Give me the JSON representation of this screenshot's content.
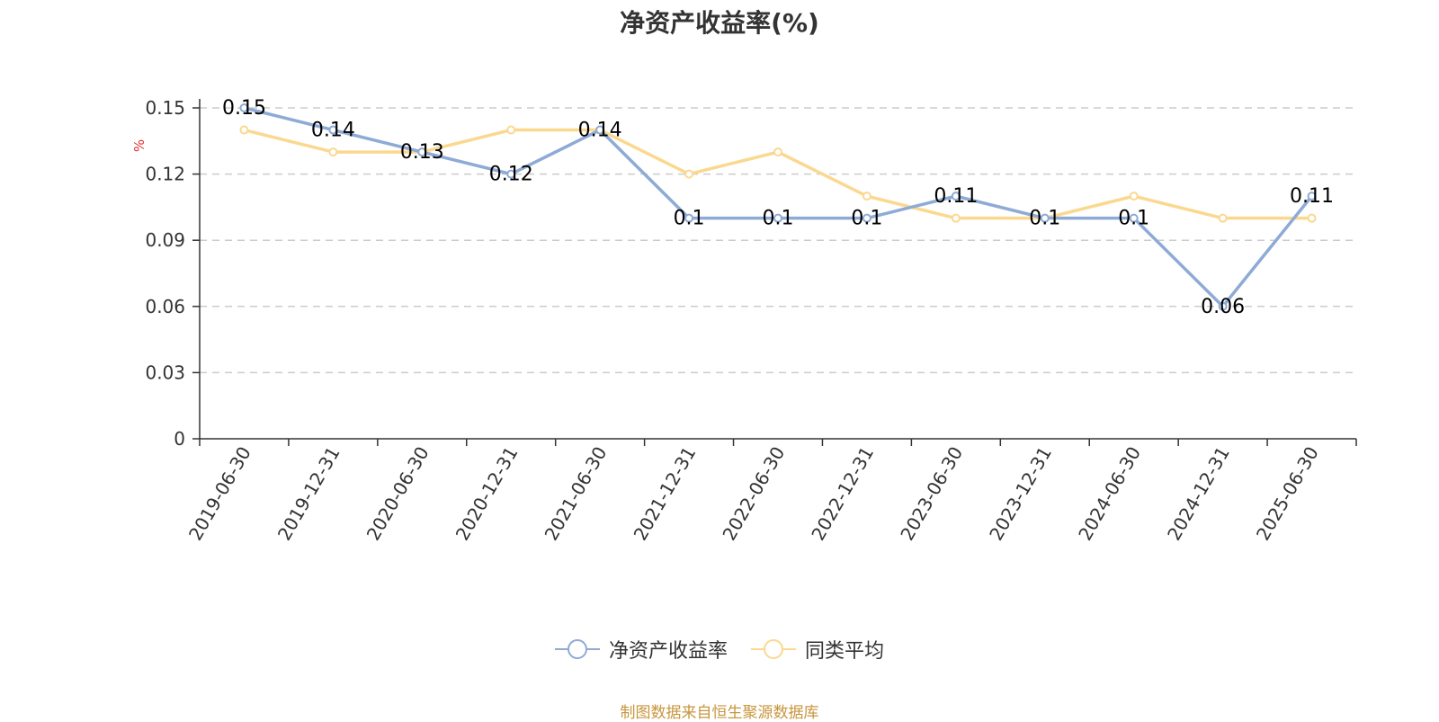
{
  "colors": {
    "roe": "#8eaad6",
    "avg": "#fbd88f",
    "grid": "#cccccc",
    "axis": "#333333",
    "source": "#c8963e"
  },
  "chart_data": {
    "type": "line",
    "title": "净资产收益率(%)",
    "ylabel": "%",
    "xlabel": "",
    "ylim": [
      0,
      0.15
    ],
    "yticks": [
      "0",
      "0.03",
      "0.06",
      "0.09",
      "0.12",
      "0.15"
    ],
    "grid": true,
    "legend_position": "bottom",
    "categories": [
      "2019-06-30",
      "2019-12-31",
      "2020-06-30",
      "2020-12-31",
      "2021-06-30",
      "2021-12-31",
      "2022-06-30",
      "2022-12-31",
      "2023-06-30",
      "2023-12-31",
      "2024-06-30",
      "2024-12-31",
      "2025-06-30"
    ],
    "series": [
      {
        "name": "净资产收益率",
        "values": [
          0.15,
          0.14,
          0.13,
          0.12,
          0.14,
          0.1,
          0.1,
          0.1,
          0.11,
          0.1,
          0.1,
          0.06,
          0.11
        ],
        "labels": [
          "0.15",
          "0.14",
          "0.13",
          "0.12",
          "0.14",
          "0.1",
          "0.1",
          "0.1",
          "0.11",
          "0.1",
          "0.1",
          "0.06",
          "0.11"
        ]
      },
      {
        "name": "同类平均",
        "values": [
          0.14,
          0.13,
          0.13,
          0.14,
          0.14,
          0.12,
          0.13,
          0.11,
          0.1,
          0.1,
          0.11,
          0.1,
          0.1
        ]
      }
    ]
  },
  "source": "制图数据来自恒生聚源数据库"
}
